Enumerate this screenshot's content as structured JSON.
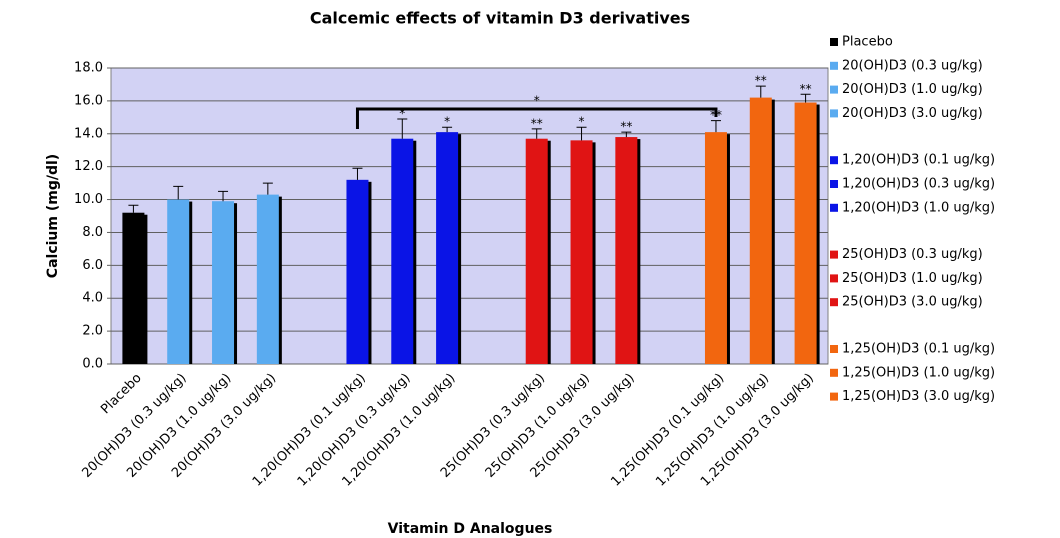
{
  "chart_data": {
    "type": "bar",
    "title": "Calcemic effects of vitamin D3 derivatives",
    "x_label": "Vitamin D Analogues",
    "y_label": "Calcium (mg/dl)",
    "categories": [
      "Placebo",
      "20(OH)D3 (0.3 ug/kg)",
      "20(OH)D3 (1.0 ug/kg)",
      "20(OH)D3 (3.0 ug/kg)",
      null,
      "1,20(OH)D3 (0.1 ug/kg)",
      "1,20(OH)D3 (0.3 ug/kg)",
      "1,20(OH)D3 (1.0 ug/kg)",
      null,
      "25(OH)D3 (0.3 ug/kg)",
      "25(OH)D3 (1.0 ug/kg)",
      "25(OH)D3 (3.0 ug/kg)",
      null,
      "1,25(OH)D3 (0.1 ug/kg)",
      "1,25(OH)D3 (1.0 ug/kg)",
      "1,25(OH)D3 (3.0 ug/kg)"
    ],
    "values": [
      9.2,
      10.0,
      9.9,
      10.3,
      null,
      11.2,
      13.7,
      14.1,
      null,
      13.7,
      13.6,
      13.8,
      null,
      14.1,
      16.2,
      15.9
    ],
    "errors": [
      0.45,
      0.8,
      0.6,
      0.7,
      null,
      0.7,
      1.2,
      0.3,
      null,
      0.6,
      0.8,
      0.3,
      null,
      0.7,
      0.7,
      0.5
    ],
    "colors": [
      "#000000",
      "#5aabf0",
      "#5aabf0",
      "#5aabf0",
      null,
      "#0a14e6",
      "#0a14e6",
      "#0a14e6",
      null,
      "#e01414",
      "#e01414",
      "#e01414",
      null,
      "#f2660f",
      "#f2660f",
      "#f2660f"
    ],
    "annotations": [
      null,
      null,
      null,
      null,
      null,
      null,
      "*",
      "*",
      null,
      "**",
      "*",
      "**",
      null,
      "**",
      "**",
      "**"
    ],
    "bracket": {
      "from": 5,
      "to": 13,
      "label": "*"
    },
    "ylim": [
      0,
      18
    ],
    "yticks": [
      {
        "value": 0,
        "label": "0.0"
      },
      {
        "value": 2,
        "label": "2.0"
      },
      {
        "value": 4,
        "label": "4.0"
      },
      {
        "value": 6,
        "label": "6.0"
      },
      {
        "value": 8,
        "label": "8.0"
      },
      {
        "value": 10,
        "label": "10.0"
      },
      {
        "value": 12,
        "label": "12.0"
      },
      {
        "value": 14,
        "label": "14.0"
      },
      {
        "value": 16,
        "label": "16.0"
      },
      {
        "value": 18,
        "label": "18.0"
      }
    ],
    "grid": true
  }
}
